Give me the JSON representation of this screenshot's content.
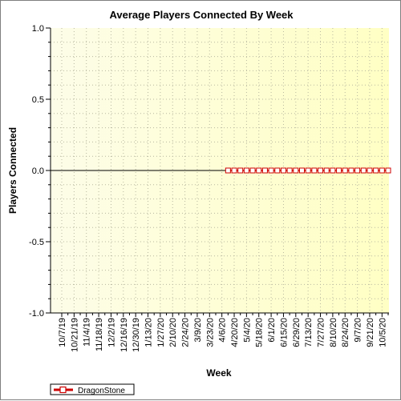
{
  "chart_data": {
    "type": "line",
    "title": "Average Players Connected By Week",
    "xlabel": "Week",
    "ylabel": "Players Connected",
    "ylim": [
      -1.0,
      1.0
    ],
    "y_ticks": [
      "1.0",
      "0.5",
      "0.0",
      "-0.5",
      "-1.0"
    ],
    "y_tick_values": [
      1.0,
      0.5,
      0.0,
      -0.5,
      -1.0
    ],
    "x_tick_labels": [
      "10/7/19",
      "10/21/19",
      "11/4/19",
      "11/18/19",
      "12/2/19",
      "12/16/19",
      "12/30/19",
      "1/13/20",
      "1/27/20",
      "2/10/20",
      "2/24/20",
      "3/9/20",
      "3/23/20",
      "4/6/20",
      "4/20/20",
      "5/4/20",
      "5/18/20",
      "6/1/20",
      "6/15/20",
      "6/29/20",
      "7/13/20",
      "7/27/20",
      "8/10/20",
      "8/24/20",
      "9/7/20",
      "9/21/20",
      "10/5/20"
    ],
    "weeks_total": 54,
    "grid": true,
    "legend_position": "bottom-left",
    "series": [
      {
        "name": "DragonStone",
        "color": "#cc0000",
        "marker": "square",
        "start_week_index": 27,
        "values": [
          0,
          0,
          0,
          0,
          0,
          0,
          0,
          0,
          0,
          0,
          0,
          0,
          0,
          0,
          0,
          0,
          0,
          0,
          0,
          0,
          0,
          0,
          0,
          0,
          0,
          0,
          0
        ]
      }
    ],
    "background_gradient": [
      "#fdfde8",
      "#ffffc4"
    ]
  }
}
